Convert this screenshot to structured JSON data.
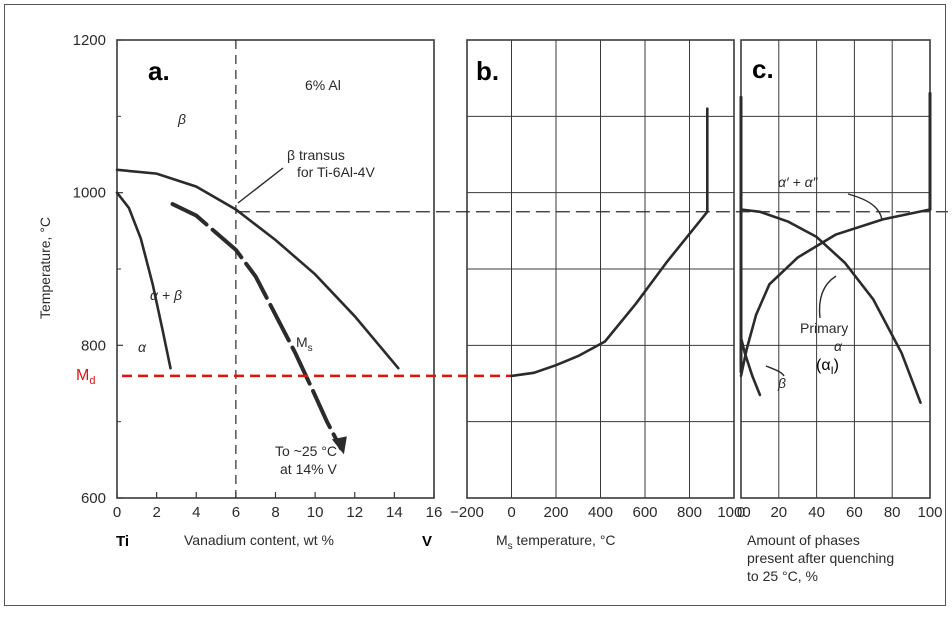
{
  "chart_data": [
    {
      "panel_label": "a.",
      "type": "line",
      "ylabel": "Temperature, °C",
      "xlabel": "Vanadium content, wt %",
      "x_end_left": "Ti",
      "x_end_right": "V",
      "xlim": [
        0,
        16
      ],
      "ylim": [
        600,
        1200
      ],
      "x_ticks": [
        "0",
        "2",
        "4",
        "6",
        "8",
        "10",
        "12",
        "14",
        "16"
      ],
      "y_ticks": [
        "600",
        "800",
        "1000",
        "1200"
      ],
      "region_labels": {
        "beta": "β",
        "alpha_beta": "α + β",
        "alpha": "α",
        "ms": "M",
        "ms_sub": "s"
      },
      "annotations": {
        "al": "6% Al",
        "transus_1": "β transus",
        "transus_2": "for Ti-6Al-4V",
        "to_25_1": "To ~25 °C",
        "to_25_2": "at 14% V",
        "md": "M",
        "md_sub": "d"
      },
      "composition_line_x": 6,
      "transus_temperature": 975,
      "md_temperature": 760,
      "series": [
        {
          "id": "beta_transus",
          "x": [
            0,
            2,
            4,
            6,
            8,
            10,
            12,
            14.2
          ],
          "y": [
            1030,
            1025,
            1008,
            978,
            938,
            893,
            838,
            770
          ]
        },
        {
          "id": "alpha_boundary",
          "x": [
            0,
            0.6,
            1.2,
            1.8,
            2.3,
            2.7
          ],
          "y": [
            1000,
            980,
            940,
            880,
            820,
            770
          ]
        },
        {
          "id": "ms_curve",
          "x": [
            2.8,
            4,
            6,
            7,
            8,
            9,
            9.9,
            10.6,
            11.3
          ],
          "y": [
            985,
            970,
            925,
            890,
            840,
            790,
            740,
            700,
            665
          ]
        }
      ]
    },
    {
      "panel_label": "b.",
      "type": "line",
      "xlabel": "M",
      "xlabel_sub": "s",
      "xlabel_rest": " temperature, °C",
      "xlim": [
        -200,
        1000
      ],
      "ylim": [
        600,
        1200
      ],
      "x_ticks": [
        "−200",
        "0",
        "200",
        "400",
        "600",
        "800",
        "1000"
      ],
      "series": [
        {
          "id": "ms_temperature",
          "x": [
            0,
            100,
            200,
            300,
            420,
            560,
            700,
            880,
            880
          ],
          "y": [
            760,
            764,
            774,
            786,
            805,
            855,
            910,
            975,
            1110
          ]
        }
      ]
    },
    {
      "panel_label": "c.",
      "type": "line",
      "xlabel_lines": [
        "Amount of phases",
        "present after quenching",
        "to 25 °C, %"
      ],
      "xlim": [
        0,
        100
      ],
      "ylim": [
        600,
        1200
      ],
      "x_ticks": [
        "0",
        "20",
        "40",
        "60",
        "80",
        "100"
      ],
      "labels": {
        "alpha_prime": "α′ + α″",
        "primary": "Primary",
        "alpha": "α",
        "alpha_i": "(α",
        "alpha_i_sub": "I",
        "alpha_i_close": ")",
        "beta": "β"
      },
      "series": [
        {
          "id": "alpha_prime_alpha_dp",
          "x": [
            0,
            3,
            8,
            15,
            30,
            50,
            75,
            100
          ],
          "y": [
            760,
            795,
            840,
            880,
            915,
            945,
            965,
            978
          ]
        },
        {
          "id": "primary_alpha",
          "x": [
            0,
            10,
            25,
            40,
            55,
            70,
            85,
            95
          ],
          "y": [
            978,
            975,
            962,
            942,
            908,
            860,
            790,
            725
          ]
        },
        {
          "id": "beta",
          "x": [
            10,
            6,
            2,
            0
          ],
          "y": [
            735,
            760,
            790,
            810
          ]
        },
        {
          "id": "left_edge",
          "x": [
            0,
            0
          ],
          "y": [
            765,
            1125
          ]
        },
        {
          "id": "right_edge",
          "x": [
            100,
            100
          ],
          "y": [
            978,
            1130
          ]
        }
      ]
    }
  ],
  "colors": {
    "ink": "#2b2b2b",
    "md_line": "#e31010",
    "grid": "#3a3a3a"
  }
}
